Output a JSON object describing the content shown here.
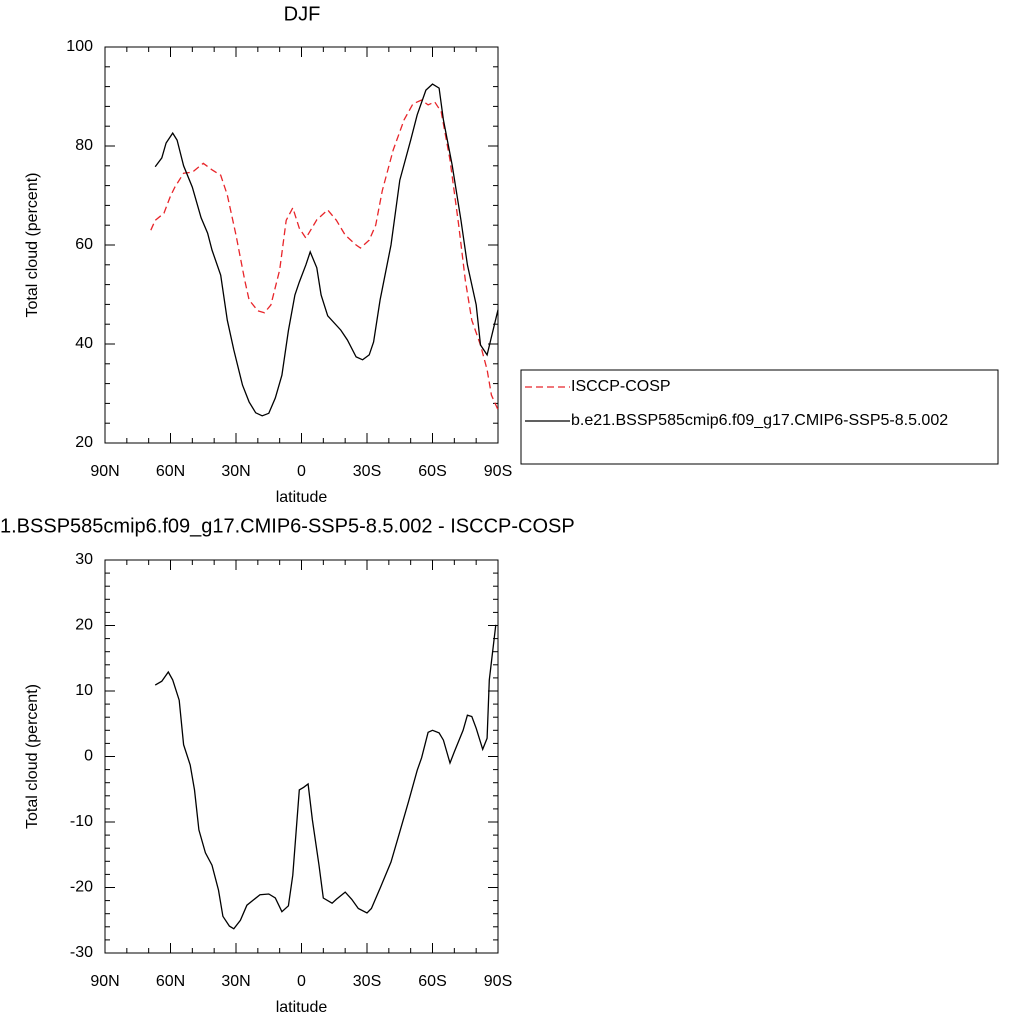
{
  "chart_data": [
    {
      "type": "line",
      "title": "DJF",
      "xlabel": "latitude",
      "ylabel": "Total cloud (percent)",
      "xlim": [
        90,
        -90
      ],
      "xticks": [
        {
          "value": 90,
          "label": "90N"
        },
        {
          "value": 60,
          "label": "60N"
        },
        {
          "value": 30,
          "label": "30N"
        },
        0,
        {
          "value": -30,
          "label": "30S"
        },
        {
          "value": -60,
          "label": "60S"
        },
        {
          "value": -90,
          "label": "90S"
        }
      ],
      "ylim": [
        20,
        100
      ],
      "yticks": [
        20,
        40,
        60,
        80,
        100
      ],
      "legend": "right",
      "series": [
        {
          "name": "ISCCP-COSP",
          "color": "#e8252a",
          "linestyle": "dashed",
          "x": [
            69,
            67,
            63,
            60,
            58,
            54,
            50,
            45,
            41,
            37,
            34,
            30,
            26,
            24,
            20,
            17,
            14,
            10,
            7,
            4,
            1,
            -2,
            -7,
            -12,
            -16,
            -20,
            -25,
            -27,
            -31,
            -34,
            -37,
            -42,
            -47,
            -51,
            -55,
            -58,
            -61,
            -64,
            -68,
            -72,
            -75,
            -78,
            -82,
            -85,
            -87,
            -90
          ],
          "values": [
            63,
            65,
            66.4,
            69.9,
            71.7,
            74.5,
            74.7,
            76.5,
            75.2,
            74.1,
            70.1,
            62,
            52.9,
            48.9,
            46.7,
            46.3,
            47.9,
            55,
            65,
            67.5,
            63.4,
            61.4,
            65.1,
            67.1,
            65,
            62,
            60,
            59.4,
            61,
            64,
            71,
            79.2,
            85.3,
            88.5,
            89.3,
            88.3,
            88.9,
            86.9,
            77.2,
            64,
            52.9,
            44.8,
            39.8,
            34.8,
            29.7,
            26.7
          ]
        },
        {
          "name": "b.e21.BSSP585cmip6.f09_g17.CMIP6-SSP5-8.5.002",
          "color": "#000000",
          "linestyle": "solid",
          "x": [
            67,
            64,
            62,
            59,
            57,
            54,
            50,
            46,
            43,
            41,
            37,
            34,
            31,
            27,
            24,
            21,
            18,
            15,
            12,
            9,
            6,
            3,
            1,
            -2,
            -4,
            -7,
            -9,
            -12,
            -18,
            -21,
            -25,
            -28,
            -31,
            -33,
            -36,
            -41,
            -45,
            -50,
            -53,
            -57,
            -60,
            -63,
            -65,
            -69,
            -73,
            -76,
            -80,
            -82,
            -85,
            -87,
            -90
          ],
          "values": [
            75.8,
            77.6,
            80.6,
            82.6,
            81.2,
            76,
            71.7,
            65.5,
            62.4,
            59,
            53.9,
            44.8,
            38.8,
            31.7,
            28.3,
            26.1,
            25.5,
            26,
            29.1,
            33.7,
            42.7,
            49.9,
            52.5,
            56,
            58.6,
            55.4,
            49.9,
            45.7,
            42.8,
            40.8,
            37.4,
            36.8,
            37.8,
            40.4,
            48.9,
            60,
            73.1,
            81.2,
            86.3,
            91.3,
            92.5,
            91.7,
            85.3,
            76.2,
            65.1,
            56,
            47.9,
            39.8,
            37.8,
            41.4,
            46.9
          ]
        }
      ]
    },
    {
      "type": "line",
      "title": "1.BSSP585cmip6.f09_g17.CMIP6-SSP5-8.5.002 - ISCCP-COSP",
      "xlabel": "latitude",
      "ylabel": "Total cloud (percent)",
      "xlim": [
        90,
        -90
      ],
      "xticks": [
        {
          "value": 90,
          "label": "90N"
        },
        {
          "value": 60,
          "label": "60N"
        },
        {
          "value": 30,
          "label": "30N"
        },
        0,
        {
          "value": -30,
          "label": "30S"
        },
        {
          "value": -60,
          "label": "60S"
        },
        {
          "value": -90,
          "label": "90S"
        }
      ],
      "ylim": [
        -30,
        30
      ],
      "yticks": [
        -30,
        -20,
        -10,
        0,
        10,
        20,
        30
      ],
      "series": [
        {
          "color": "#000000",
          "linestyle": "solid",
          "x": [
            67,
            64,
            61,
            59,
            56,
            54,
            51,
            49,
            47,
            44,
            41,
            38,
            36,
            33,
            31,
            28,
            25,
            22,
            19,
            15,
            12,
            9,
            6,
            4,
            1,
            -1,
            -3,
            -5,
            -8,
            -10,
            -14,
            -16,
            -20,
            -23,
            -26,
            -30,
            -32,
            -36,
            -41,
            -45,
            -49,
            -53,
            -55,
            -58,
            -60,
            -63,
            -65,
            -68,
            -70,
            -74,
            -76,
            -78,
            -80,
            -83,
            -85,
            -86,
            -89
          ],
          "values": [
            10.9,
            11.5,
            12.9,
            11.7,
            8.6,
            1.8,
            -1.3,
            -5.1,
            -11.2,
            -14.7,
            -16.6,
            -20.4,
            -24.4,
            -25.9,
            -26.3,
            -25,
            -22.7,
            -21.9,
            -21.1,
            -21,
            -21.6,
            -23.7,
            -22.8,
            -18.1,
            -5.1,
            -4.7,
            -4.2,
            -9.7,
            -16.6,
            -21.6,
            -22.4,
            -21.8,
            -20.7,
            -21.8,
            -23.2,
            -23.9,
            -23.2,
            -20.1,
            -16.1,
            -11.5,
            -6.9,
            -2.1,
            -0.2,
            3.7,
            4,
            3.6,
            2.5,
            -1,
            0.7,
            4,
            6.3,
            6.1,
            4.3,
            1.1,
            2.8,
            11.7,
            20.1
          ]
        }
      ]
    }
  ]
}
